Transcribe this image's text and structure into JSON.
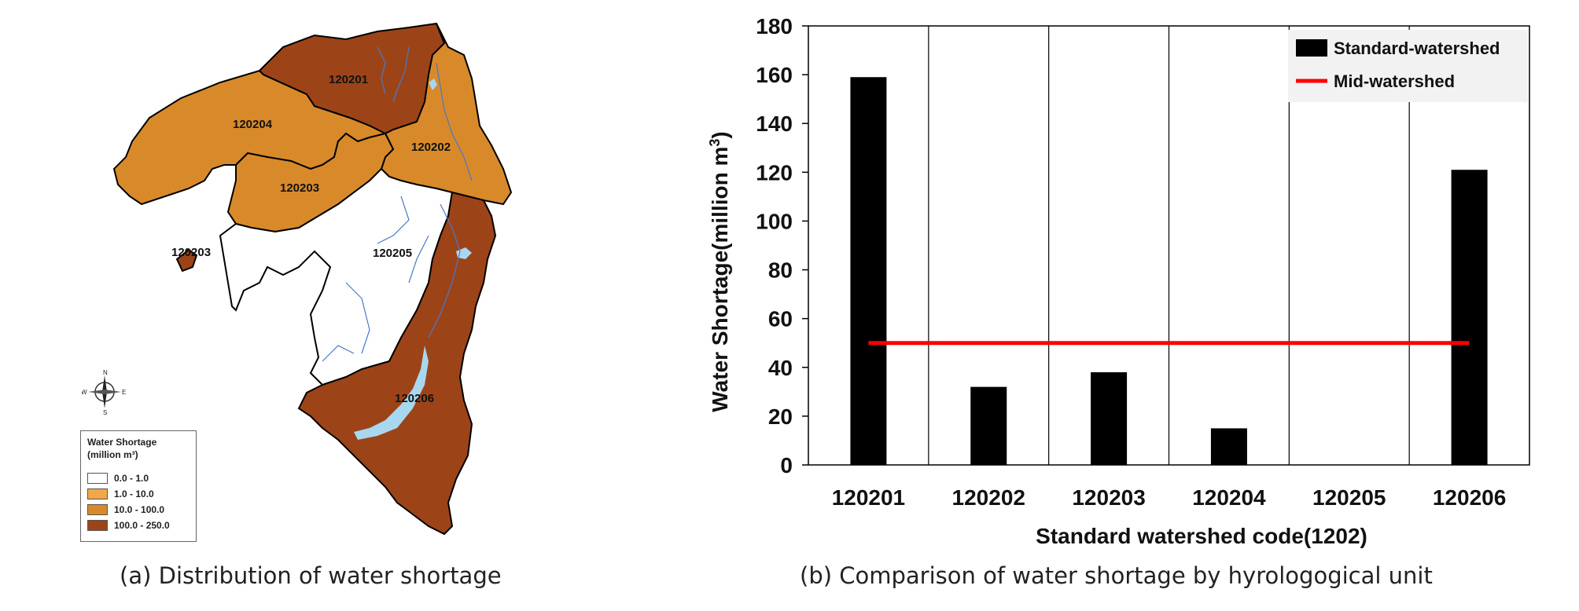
{
  "map": {
    "caption": "(a) Distribution of water shortage",
    "legend_title_line1": "Water Shortage",
    "legend_title_line2": "(million m³)",
    "legend_classes": [
      {
        "label": "0.0 - 1.0",
        "color": "#ffffff"
      },
      {
        "label": "1.0 - 10.0",
        "color": "#f0a84a"
      },
      {
        "label": "10.0 - 100.0",
        "color": "#d88a2a"
      },
      {
        "label": "100.0 - 250.0",
        "color": "#9c4418"
      }
    ],
    "regions": [
      {
        "code": "120201",
        "color": "#9c4418"
      },
      {
        "code": "120202",
        "color": "#d88a2a"
      },
      {
        "code": "120203",
        "color": "#d88a2a"
      },
      {
        "code": "120204",
        "color": "#d88a2a"
      },
      {
        "code": "120205",
        "color": "#ffffff"
      },
      {
        "code": "120206",
        "color": "#9c4418"
      }
    ],
    "extra_label": "120203",
    "compass_labels": {
      "n": "N",
      "e": "E",
      "s": "S",
      "w": "W"
    },
    "water_color": "#a8d8f0",
    "river_color": "#4a78c8"
  },
  "chart_data": {
    "type": "bar",
    "caption": "(b) Comparison of water shortage by hyrologogical unit",
    "categories": [
      "120201",
      "120202",
      "120203",
      "120204",
      "120205",
      "120206"
    ],
    "series": [
      {
        "name": "Standard-watershed",
        "type": "bar",
        "color": "#000000",
        "values": [
          159,
          32,
          38,
          15,
          0,
          121
        ]
      },
      {
        "name": "Mid-watershed",
        "type": "line",
        "color": "#ff0000",
        "values": [
          50,
          50,
          50,
          50,
          50,
          50
        ]
      }
    ],
    "xlabel": "Standard watershed code(1202)",
    "ylabel": "Water Shortage(million m",
    "ylabel_sup": "3",
    "ylabel_close": ")",
    "ylim": [
      0,
      180
    ],
    "yticks": [
      0,
      20,
      40,
      60,
      80,
      100,
      120,
      140,
      160,
      180
    ],
    "legend_position": "top-right",
    "grid": "vertical category separators"
  }
}
